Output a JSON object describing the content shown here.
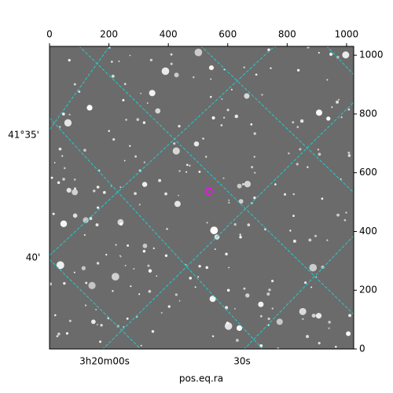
{
  "chart_data": {
    "type": "image",
    "xlabel": "pos.eq.ra",
    "xlim": [
      0,
      1024
    ],
    "xticks": [
      0,
      200,
      400,
      600,
      800,
      1000
    ],
    "ylim": [
      0,
      1030
    ],
    "yticks": [
      0,
      200,
      400,
      600,
      800,
      1000
    ],
    "wcs_left_labels": [
      "41°35'",
      "40'"
    ],
    "wcs_bottom_labels": [
      "3h20m00s",
      "30s"
    ],
    "marker": {
      "x": 537,
      "y": 537,
      "color": "#ff00ff"
    }
  }
}
